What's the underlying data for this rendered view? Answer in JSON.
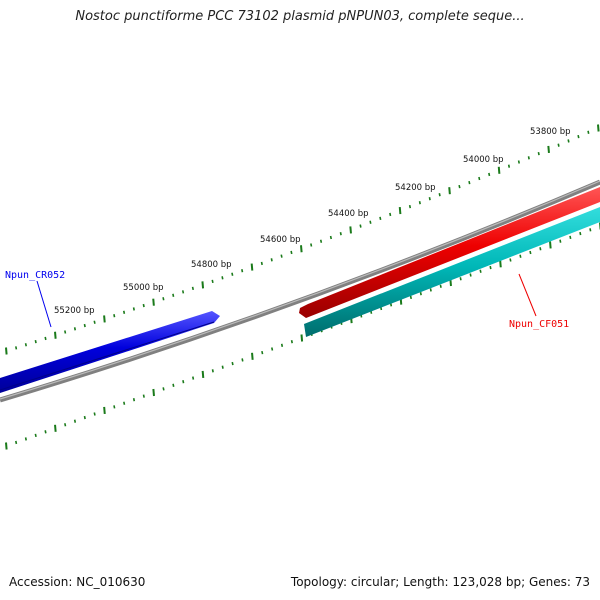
{
  "title": "Nostoc punctiforme PCC 73102 plasmid pNPUN03, complete seque...",
  "footer": {
    "accession": "Accession: NC_010630",
    "topology": "Topology: circular; Length: 123,028 bp; Genes: 73"
  },
  "ticks": [
    {
      "bp": 53800,
      "label": "53800 bp"
    },
    {
      "bp": 54000,
      "label": "54000 bp"
    },
    {
      "bp": 54200,
      "label": "54200 bp"
    },
    {
      "bp": 54400,
      "label": "54400 bp"
    },
    {
      "bp": 54600,
      "label": "54600 bp"
    },
    {
      "bp": 54800,
      "label": "54800 bp"
    },
    {
      "bp": 55000,
      "label": "55000 bp"
    },
    {
      "bp": 55200,
      "label": "55200 bp"
    }
  ],
  "genes": [
    {
      "name": "Npun_CR052",
      "strand": "reverse",
      "color": "#0000ee"
    },
    {
      "name": "Npun_CF051",
      "strand": "forward",
      "color": "#ee0000"
    },
    {
      "name": "Npun_CF051",
      "strand": "forward",
      "color": "#00bbbb"
    }
  ],
  "colors": {
    "backbone": "#808080",
    "tick": "#1a7a1a",
    "reverse_gene": "#0000ee",
    "forward_gene": "#ee0000",
    "cds": "#00bbbb"
  }
}
